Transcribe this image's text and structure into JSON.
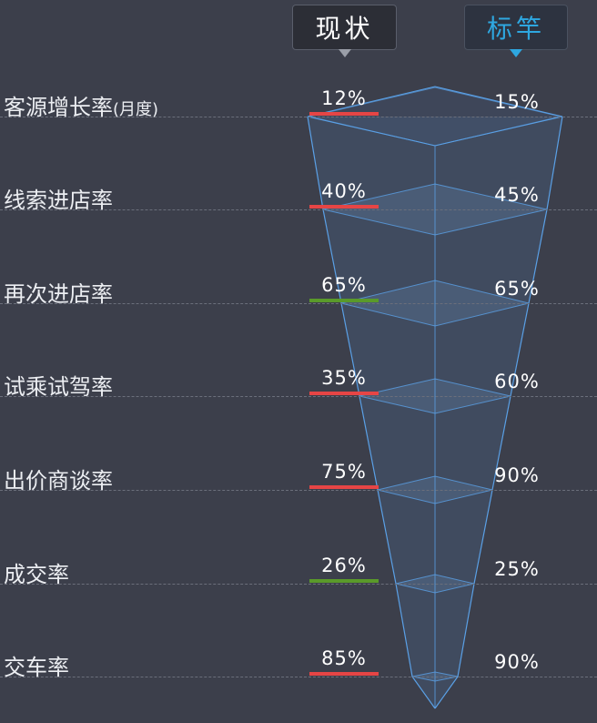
{
  "header": {
    "current_label": "现状",
    "benchmark_label": "标竿"
  },
  "colors": {
    "background": "#3c3f4b",
    "below_benchmark": "#e64545",
    "meets_benchmark": "#5a9a2a",
    "funnel_stroke": "#5aa0e6",
    "accent": "#2ea7e0"
  },
  "chart_data": {
    "type": "funnel",
    "series": [
      {
        "name": "现状",
        "values": [
          12,
          40,
          65,
          35,
          75,
          26,
          85
        ]
      },
      {
        "name": "标竿",
        "values": [
          15,
          45,
          65,
          60,
          90,
          25,
          90
        ]
      }
    ],
    "stages": [
      {
        "label": "客源增长率",
        "label_sub": "(月度)",
        "current": "12%",
        "benchmark": "15%",
        "status": "below"
      },
      {
        "label": "线索进店率",
        "label_sub": "",
        "current": "40%",
        "benchmark": "45%",
        "status": "below"
      },
      {
        "label": "再次进店率",
        "label_sub": "",
        "current": "65%",
        "benchmark": "65%",
        "status": "ok"
      },
      {
        "label": "试乘试驾率",
        "label_sub": "",
        "current": "35%",
        "benchmark": "60%",
        "status": "below"
      },
      {
        "label": "出价商谈率",
        "label_sub": "",
        "current": "75%",
        "benchmark": "90%",
        "status": "below"
      },
      {
        "label": "成交率",
        "label_sub": "",
        "current": "26%",
        "benchmark": "25%",
        "status": "ok"
      },
      {
        "label": "交车率",
        "label_sub": "",
        "current": "85%",
        "benchmark": "90%",
        "status": "below"
      }
    ]
  }
}
